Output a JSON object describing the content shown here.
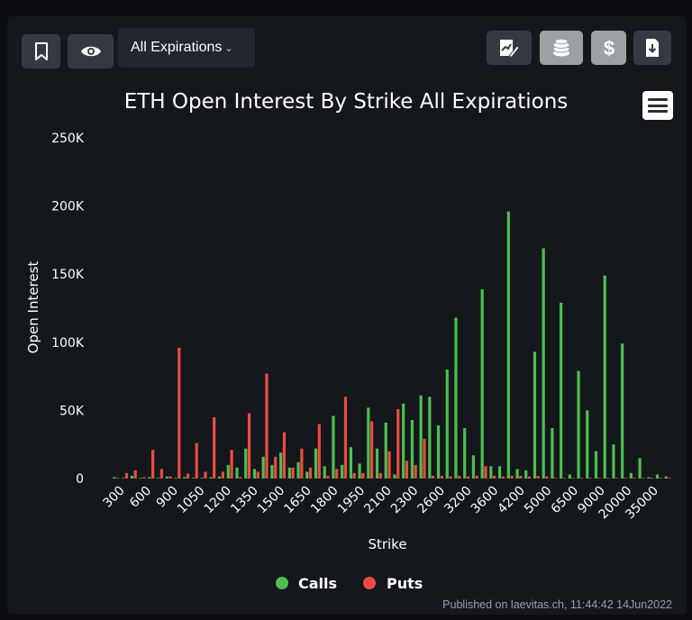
{
  "toolbar": {
    "dropdown_label": "All Expirations",
    "left_icons": [
      "bookmark-icon",
      "eye-icon"
    ],
    "right_icons": [
      "edit-chart-icon",
      "coins-icon",
      "dollar-icon",
      "download-icon"
    ]
  },
  "footer": {
    "published": "Published on laevitas.ch, 11:44:42 14Jun2022"
  },
  "colors": {
    "calls": "#4cbf4f",
    "puts": "#ee4b3f",
    "background": "#14171c"
  },
  "chart_data": {
    "type": "bar",
    "title": "ETH Open Interest By Strike All Expirations",
    "xlabel": "Strike",
    "ylabel": "Open Interest",
    "ylim": [
      0,
      250000
    ],
    "y_ticks": [
      "0",
      "50K",
      "100K",
      "150K",
      "200K",
      "250K"
    ],
    "x_tick_labels": [
      "300",
      "600",
      "900",
      "1050",
      "1200",
      "1350",
      "1500",
      "1650",
      "1800",
      "1950",
      "2100",
      "2300",
      "2600",
      "3200",
      "3600",
      "4200",
      "5000",
      "6500",
      "9000",
      "20000",
      "35000"
    ],
    "legend_position": "bottom-center",
    "grid": false,
    "series": [
      {
        "name": "Calls",
        "values": [
          1000,
          500,
          2000,
          500,
          1000,
          500,
          1500,
          500,
          1000,
          500,
          500,
          1000,
          1500,
          10000,
          8000,
          22000,
          7000,
          16000,
          10000,
          19000,
          8000,
          12000,
          5000,
          22000,
          9000,
          46000,
          10000,
          23000,
          11000,
          52000,
          22000,
          41000,
          3000,
          55000,
          43000,
          61000,
          60000,
          39000,
          80000,
          118000,
          37000,
          17000,
          139000,
          9000,
          9000,
          196000,
          7000,
          6000,
          93000,
          169000,
          37000,
          129000,
          3000,
          79000,
          50000,
          20000,
          149000,
          25000,
          99000,
          4000,
          15000,
          1000,
          3000,
          1500
        ]
      },
      {
        "name": "Puts",
        "values": [
          500,
          4000,
          6000,
          1000,
          21000,
          7000,
          1500,
          96000,
          3500,
          26000,
          5000,
          45000,
          5000,
          21000,
          1000,
          48000,
          5000,
          77000,
          16000,
          34000,
          8000,
          22000,
          8000,
          40000,
          2000,
          7000,
          60000,
          4000,
          4000,
          42000,
          4000,
          20000,
          51000,
          13000,
          10000,
          29000,
          2000,
          2000,
          1500,
          2000,
          1500,
          2000,
          9000,
          2000,
          1500,
          2000,
          2000,
          1500,
          2000,
          1500,
          500,
          500,
          500,
          500,
          500,
          500,
          500,
          500,
          500,
          500,
          500,
          500,
          500,
          500
        ]
      }
    ]
  }
}
